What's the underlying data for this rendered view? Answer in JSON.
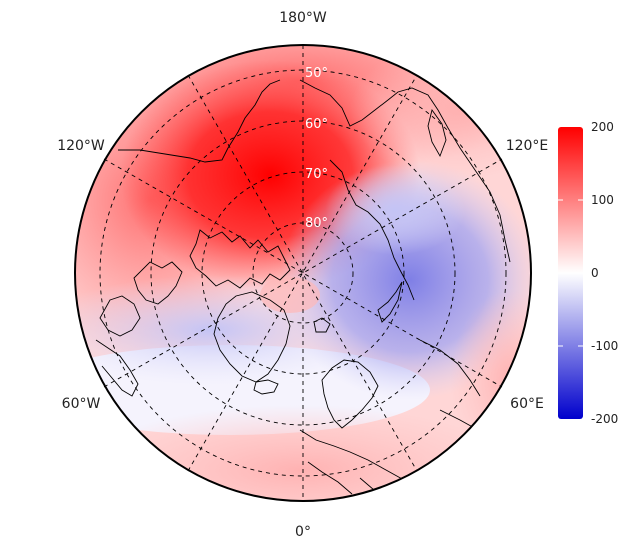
{
  "map": {
    "projection": "north-polar-stereographic",
    "longitude_labels": {
      "top": "180°W",
      "bottom": "0°",
      "upper_left": "120°W",
      "upper_right": "120°E",
      "lower_left": "60°W",
      "lower_right": "60°E"
    },
    "latitude_labels": [
      "50°",
      "60°",
      "70°",
      "80°"
    ],
    "gridlines": "dashed",
    "colors": {
      "positive": "#ff0000",
      "neutral": "#ffffff",
      "negative": "#0000cc",
      "coastline": "#000000"
    }
  },
  "colorbar": {
    "min": -200,
    "max": 200,
    "ticks": [
      "200",
      "100",
      "0",
      "-100",
      "-200"
    ]
  }
}
